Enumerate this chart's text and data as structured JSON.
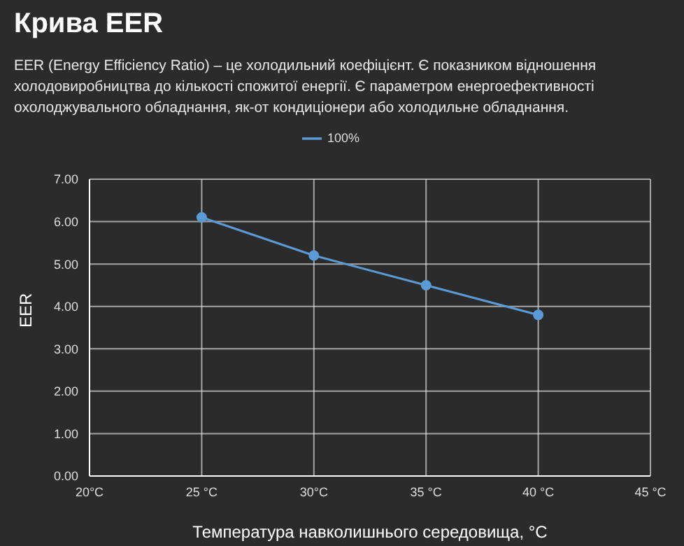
{
  "chart_data": {
    "type": "line",
    "title": "Крива EER",
    "subtitle": "EER (Energy Efficiency Ratio) – це холодильний коефіцієнт. Є показником відношення холодовиробництва до кількості спожитої енергії. Є параметром енергоефективності охолоджувального обладнання, як-от кондиціонери або холодильне обладнання.",
    "xlabel": "Температура навколишнього середовища, °C",
    "ylabel": "EER",
    "x": [
      25,
      30,
      35,
      40
    ],
    "series": [
      {
        "name": "100%",
        "color": "#5b9bd5",
        "values": [
          6.1,
          5.2,
          4.5,
          3.8
        ]
      }
    ],
    "xlim": [
      20,
      45
    ],
    "xticks": [
      {
        "value": 20,
        "label": "20°C"
      },
      {
        "value": 25,
        "label": "25 °C"
      },
      {
        "value": 30,
        "label": "30°C"
      },
      {
        "value": 35,
        "label": "35 °C"
      },
      {
        "value": 40,
        "label": "40 °C"
      },
      {
        "value": 45,
        "label": "45 °C"
      }
    ],
    "ylim": [
      0,
      7
    ],
    "yticks": [
      {
        "value": 0,
        "label": "0.00"
      },
      {
        "value": 1,
        "label": "1.00"
      },
      {
        "value": 2,
        "label": "2.00"
      },
      {
        "value": 3,
        "label": "3.00"
      },
      {
        "value": 4,
        "label": "4.00"
      },
      {
        "value": 5,
        "label": "5.00"
      },
      {
        "value": 6,
        "label": "6.00"
      },
      {
        "value": 7,
        "label": "7.00"
      }
    ],
    "grid": true,
    "legend": "top",
    "marker": "circle",
    "line_style": "solid"
  }
}
